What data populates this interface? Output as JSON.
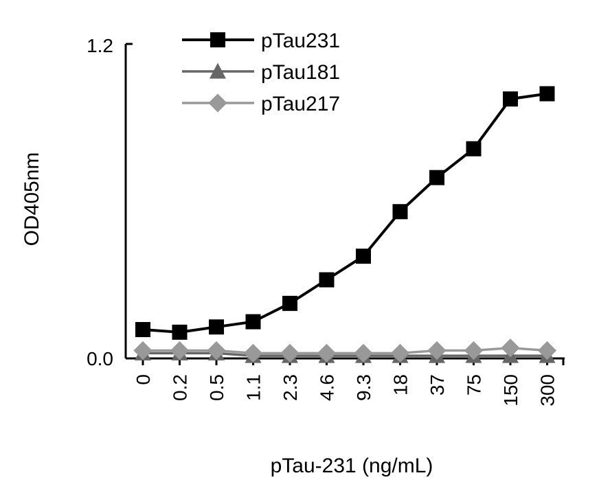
{
  "chart_data": {
    "type": "line",
    "categories": [
      "0",
      "0.2",
      "0.5",
      "1.1",
      "2.3",
      "4.6",
      "9.3",
      "18",
      "37",
      "75",
      "150",
      "300"
    ],
    "series": [
      {
        "name": "pTau231",
        "marker": "square",
        "color": "#000000",
        "values": [
          0.11,
          0.1,
          0.12,
          0.14,
          0.21,
          0.3,
          0.39,
          0.56,
          0.69,
          0.8,
          0.99,
          1.01
        ]
      },
      {
        "name": "pTau181",
        "marker": "triangle",
        "color": "#666666",
        "values": [
          0.02,
          0.02,
          0.02,
          0.01,
          0.01,
          0.01,
          0.01,
          0.01,
          0.01,
          0.01,
          0.01,
          0.01
        ]
      },
      {
        "name": "pTau217",
        "marker": "diamond",
        "color": "#999999",
        "values": [
          0.03,
          0.03,
          0.03,
          0.02,
          0.02,
          0.02,
          0.02,
          0.02,
          0.03,
          0.03,
          0.04,
          0.03
        ]
      }
    ],
    "y_tick_labels": [
      "0.0",
      "1.2"
    ],
    "ylim": [
      0,
      1.2
    ],
    "xlabel": "pTau-231 (ng/mL)",
    "ylabel": "OD405nm",
    "grid": false,
    "legend_position": "top-left"
  }
}
